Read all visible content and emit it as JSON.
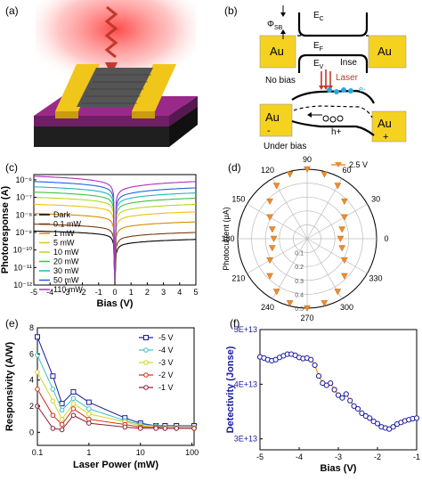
{
  "panels": {
    "a": "(a)",
    "b": "(b)",
    "c": "(c)",
    "d": "(d)",
    "e": "(e)",
    "f": "(f)"
  },
  "schematic_b": {
    "labels": {
      "ec": "E",
      "ec_sub": "C",
      "ef": "E",
      "ef_sub": "F",
      "ev": "E",
      "ev_sub": "V",
      "phi": "Φ",
      "phi_sub": "SB",
      "inse": "Inse",
      "laser": "Laser",
      "electron": "e-",
      "hole": "h+",
      "no_bias": "No bias",
      "under_bias": "Under bias",
      "au_tl": "Au",
      "au_tr": "Au",
      "au_bl": "Au",
      "au_br": "Au",
      "minus": "-",
      "plus": "+"
    },
    "colors": {
      "gold": "#f4d21f",
      "laser": "#c0392b",
      "electron": "#2aa7e0"
    }
  },
  "chart_data": [
    {
      "panel": "c",
      "type": "line",
      "xlabel": "Bias (V)",
      "ylabel": "Photoresponse (A)",
      "scale_y": "log",
      "xlim": [
        -5,
        5
      ],
      "ylim": [
        1e-12,
        2e-06
      ],
      "xticks": [
        "-5",
        "-4",
        "-3",
        "-2",
        "-1",
        "0",
        "1",
        "2",
        "3",
        "4",
        "5"
      ],
      "yticks": [
        "10⁻⁶",
        "10⁻⁷",
        "10⁻⁸",
        "10⁻⁹",
        "10⁻¹⁰",
        "10⁻¹¹",
        "10⁻¹²"
      ],
      "ytick_values": [
        1e-06,
        1e-07,
        1e-08,
        1e-09,
        1e-10,
        1e-11,
        1e-12
      ],
      "legend_position": "bottom-left",
      "series": [
        {
          "name": "Dark",
          "color": "#000000",
          "left": 1.2e-09,
          "right": 4e-10
        },
        {
          "name": "0.1 mW",
          "color": "#7a3a10",
          "left": 3e-09,
          "right": 1e-09
        },
        {
          "name": "1 mW",
          "color": "#d88a00",
          "left": 1.2e-08,
          "right": 4e-09
        },
        {
          "name": "5 mW",
          "color": "#f0c010",
          "left": 4e-08,
          "right": 1.5e-08
        },
        {
          "name": "10 mW",
          "color": "#b8d820",
          "left": 1e-07,
          "right": 4e-08
        },
        {
          "name": "20 mW",
          "color": "#40c040",
          "left": 2e-07,
          "right": 9e-08
        },
        {
          "name": "30 mW",
          "color": "#20b8b8",
          "left": 4e-07,
          "right": 1.8e-07
        },
        {
          "name": "50 mW",
          "color": "#2060e0",
          "left": 8e-07,
          "right": 3.5e-07
        },
        {
          "name": "110 mW",
          "color": "#b030c0",
          "left": 1.6e-06,
          "right": 8e-07
        }
      ]
    },
    {
      "panel": "d",
      "type": "scatter",
      "polar": true,
      "ylabel": "Photocurrent (μA)",
      "legend": "2.5 V",
      "legend_position": "top-right",
      "angle_ticks": [
        "0",
        "30",
        "60",
        "90",
        "120",
        "150",
        "180",
        "210",
        "240",
        "270",
        "300",
        "330"
      ],
      "radial_ticks": [
        "0.1",
        "0.2",
        "0.3",
        "0.4",
        "0.5"
      ],
      "radial_max": 0.5,
      "color": "#f08c2a",
      "angles": [
        0,
        15,
        30,
        45,
        60,
        75,
        90,
        105,
        120,
        135,
        150,
        165,
        180,
        195,
        210,
        225,
        240,
        255,
        270,
        285,
        300,
        315,
        330,
        345
      ],
      "values": [
        0.24,
        0.26,
        0.31,
        0.38,
        0.44,
        0.48,
        0.5,
        0.48,
        0.44,
        0.38,
        0.31,
        0.26,
        0.24,
        0.26,
        0.31,
        0.38,
        0.44,
        0.48,
        0.5,
        0.48,
        0.44,
        0.38,
        0.31,
        0.26
      ]
    },
    {
      "panel": "e",
      "type": "line",
      "xlabel": "Laser Power (mW)",
      "ylabel": "Responsivity (A/W)",
      "scale_x": "log",
      "xlim": [
        0.1,
        110
      ],
      "ylim": [
        -1,
        8
      ],
      "xticks": [
        "0.1",
        "1",
        "10",
        "100"
      ],
      "yticks": [
        "0",
        "2",
        "4",
        "6",
        "8"
      ],
      "legend_position": "top-right",
      "x": [
        0.1,
        0.2,
        0.3,
        0.5,
        1,
        5,
        10,
        20,
        30,
        50,
        110
      ],
      "series": [
        {
          "name": "-5 V",
          "color": "#1a1a9c",
          "values": [
            7.3,
            4.3,
            2.2,
            3.1,
            2.3,
            1.1,
            0.7,
            0.5,
            0.5,
            0.5,
            0.5
          ]
        },
        {
          "name": "-4 V",
          "color": "#40c0c0",
          "values": [
            5.9,
            3.3,
            1.7,
            2.6,
            1.8,
            0.9,
            0.6,
            0.5,
            0.4,
            0.4,
            0.4
          ]
        },
        {
          "name": "-3 V",
          "color": "#d4d420",
          "values": [
            4.6,
            2.4,
            1.0,
            2.2,
            1.4,
            0.8,
            0.5,
            0.4,
            0.4,
            0.4,
            0.4
          ]
        },
        {
          "name": "-2 V",
          "color": "#d03010",
          "values": [
            3.3,
            1.3,
            0.6,
            1.8,
            1.0,
            0.6,
            0.4,
            0.4,
            0.3,
            0.3,
            0.3
          ]
        },
        {
          "name": "-1 V",
          "color": "#8a1c30",
          "values": [
            2.0,
            0.3,
            0.2,
            1.3,
            0.7,
            0.4,
            0.3,
            0.3,
            0.3,
            0.3,
            0.3
          ]
        }
      ]
    },
    {
      "panel": "f",
      "type": "scatter",
      "xlabel": "Bias (V)",
      "ylabel": "Detectivity (Jonse)",
      "xlim": [
        -5,
        -1
      ],
      "ylim": [
        28000000000000.0,
        50000000000000.0
      ],
      "xticks": [
        "-5",
        "-4",
        "-3",
        "-2",
        "-1"
      ],
      "yticks": [
        "5E+13",
        "4E+13",
        "3E+13"
      ],
      "ytick_values": [
        50000000000000.0,
        40000000000000.0,
        30000000000000.0
      ],
      "marker_color": "#1a1aa0",
      "fit_color": "#e8a030",
      "x": [
        -5.0,
        -4.9,
        -4.8,
        -4.7,
        -4.6,
        -4.5,
        -4.4,
        -4.3,
        -4.2,
        -4.1,
        -4.0,
        -3.9,
        -3.8,
        -3.7,
        -3.6,
        -3.5,
        -3.4,
        -3.3,
        -3.2,
        -3.1,
        -3.0,
        -2.9,
        -2.8,
        -2.7,
        -2.6,
        -2.5,
        -2.4,
        -2.3,
        -2.2,
        -2.1,
        -2.0,
        -1.9,
        -1.8,
        -1.7,
        -1.6,
        -1.5,
        -1.4,
        -1.3,
        -1.2,
        -1.1,
        -1.0
      ],
      "y": [
        45000000000000.0,
        44800000000000.0,
        44500000000000.0,
        44300000000000.0,
        44500000000000.0,
        44900000000000.0,
        45200000000000.0,
        45500000000000.0,
        45500000000000.0,
        45300000000000.0,
        44900000000000.0,
        44700000000000.0,
        44800000000000.0,
        44500000000000.0,
        43500000000000.0,
        41500000000000.0,
        40200000000000.0,
        39800000000000.0,
        40200000000000.0,
        39000000000000.0,
        38000000000000.0,
        37500000000000.0,
        38200000000000.0,
        37000000000000.0,
        36000000000000.0,
        35500000000000.0,
        34700000000000.0,
        34200000000000.0,
        33800000000000.0,
        33200000000000.0,
        32800000000000.0,
        32200000000000.0,
        32000000000000.0,
        31800000000000.0,
        32200000000000.0,
        32700000000000.0,
        33000000000000.0,
        33300000000000.0,
        33500000000000.0,
        33700000000000.0,
        33800000000000.0
      ]
    }
  ]
}
